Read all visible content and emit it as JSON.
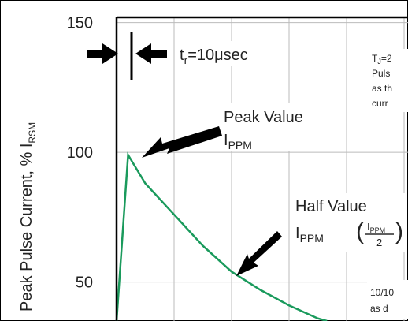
{
  "chart_data": {
    "type": "line",
    "y_axis_label": {
      "main": "Peak Pulse Current, % I",
      "sub": "RSM"
    },
    "x": [
      0,
      0.2,
      0.5,
      1.0,
      1.5,
      2.0,
      2.5,
      3.0,
      3.5,
      3.66
    ],
    "series": [
      {
        "color": "#1a9a5c",
        "values": [
          35,
          99,
          88,
          76,
          64,
          54,
          47,
          41,
          36,
          35
        ]
      }
    ],
    "xlim": [
      0,
      5
    ],
    "xticks": [
      0,
      1,
      2,
      3,
      4,
      5
    ],
    "ylim": [
      35,
      152
    ],
    "yticks": [
      50,
      100,
      150
    ],
    "grid": true,
    "rise_label": {
      "main": "t",
      "sub": "r",
      "rest": "=10μsec"
    },
    "peak_label": {
      "line1": "Peak Value",
      "line2": "I",
      "sub": "PPM"
    },
    "half_label": {
      "line1": "Half Value",
      "line2": "I",
      "sub": "PPM",
      "frac_num": "I",
      "frac_num_sub": "PPM",
      "frac_den": "2"
    },
    "side_notes": [
      "T",
      "J",
      "=2",
      "Puls",
      "as th",
      "curr",
      "10/10",
      "as d"
    ]
  }
}
